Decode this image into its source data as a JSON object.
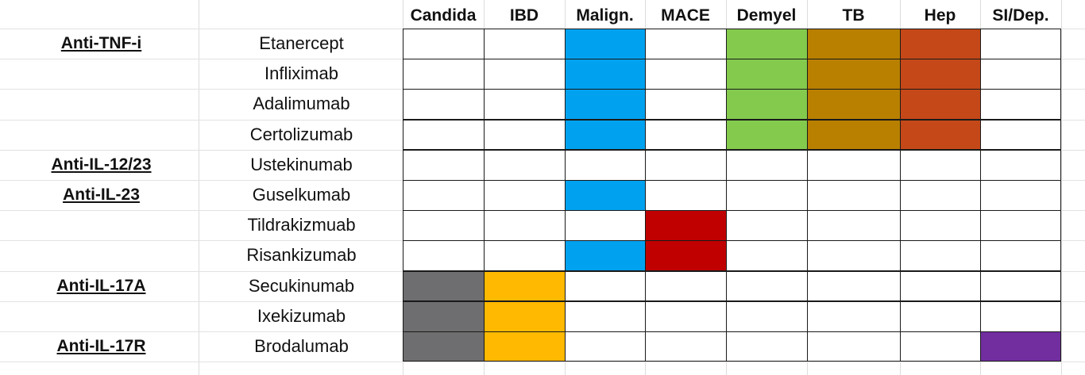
{
  "colors": {
    "Candida": "#6e6d6f",
    "IBD": "#feb900",
    "Malign.": "#00a2f0",
    "MACE": "#c00000",
    "Demyel": "#83ca4d",
    "TB": "#b98000",
    "Hep": "#c54818",
    "SI/Dep.": "#722e9f"
  },
  "columns": [
    "Candida",
    "IBD",
    "Malign.",
    "MACE",
    "Demyel",
    "TB",
    "Hep",
    "SI/Dep."
  ],
  "rows": [
    {
      "class": "Anti-TNF-i",
      "drug": "Etanercept",
      "flags": [
        0,
        0,
        1,
        0,
        1,
        1,
        1,
        0
      ]
    },
    {
      "class": "",
      "drug": "Infliximab",
      "flags": [
        0,
        0,
        1,
        0,
        1,
        1,
        1,
        0
      ]
    },
    {
      "class": "",
      "drug": "Adalimumab",
      "flags": [
        0,
        0,
        1,
        0,
        1,
        1,
        1,
        0
      ]
    },
    {
      "class": "",
      "drug": "Certolizumab",
      "flags": [
        0,
        0,
        1,
        0,
        1,
        1,
        1,
        0
      ]
    },
    {
      "class": "Anti-IL-12/23",
      "drug": "Ustekinumab",
      "flags": [
        0,
        0,
        0,
        0,
        0,
        0,
        0,
        0
      ]
    },
    {
      "class": "Anti-IL-23",
      "drug": "Guselkumab",
      "flags": [
        0,
        0,
        1,
        0,
        0,
        0,
        0,
        0
      ]
    },
    {
      "class": "",
      "drug": "Tildrakizmuab",
      "flags": [
        0,
        0,
        0,
        1,
        0,
        0,
        0,
        0
      ]
    },
    {
      "class": "",
      "drug": "Risankizumab",
      "flags": [
        0,
        0,
        1,
        1,
        0,
        0,
        0,
        0
      ]
    },
    {
      "class": "Anti-IL-17A",
      "drug": "Secukinumab",
      "flags": [
        1,
        1,
        0,
        0,
        0,
        0,
        0,
        0
      ]
    },
    {
      "class": "",
      "drug": "Ixekizumab",
      "flags": [
        1,
        1,
        0,
        0,
        0,
        0,
        0,
        0
      ]
    },
    {
      "class": "Anti-IL-17R",
      "drug": "Brodalumab",
      "flags": [
        1,
        1,
        0,
        0,
        0,
        0,
        0,
        1
      ]
    }
  ]
}
